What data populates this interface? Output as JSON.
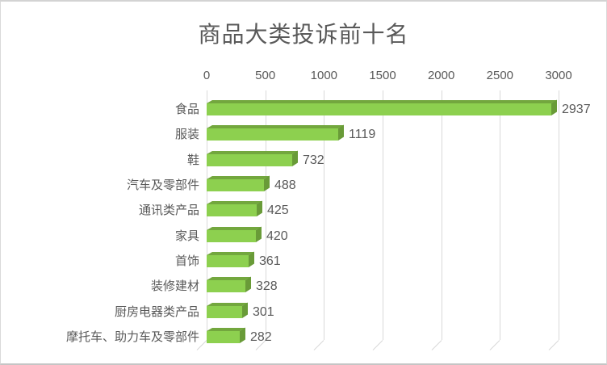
{
  "chart_data": {
    "type": "bar",
    "orientation": "horizontal",
    "style": "3d",
    "title": "商品大类投诉前十名",
    "xlabel": "",
    "ylabel": "",
    "xlim": [
      0,
      3000
    ],
    "x_ticks": [
      "0",
      "500",
      "1000",
      "1500",
      "2000",
      "2500",
      "3000"
    ],
    "grid": true,
    "axis_position": "top",
    "categories": [
      "食品",
      "服装",
      "鞋",
      "汽车及零部件",
      "通讯类产品",
      "家具",
      "首饰",
      "装修建材",
      "厨房电器类产品",
      "摩托车、助力车及零部件"
    ],
    "values": [
      2937,
      1119,
      732,
      488,
      425,
      420,
      361,
      328,
      301,
      282
    ],
    "data_labels": [
      "2937",
      "1119",
      "732",
      "488",
      "425",
      "420",
      "361",
      "328",
      "301",
      "282"
    ]
  },
  "colors": {
    "bar_front": "#8dd04f",
    "bar_top": "#73a73e",
    "bar_side": "#699b38",
    "gridline": "#d9d9d9",
    "text": "#595959",
    "background": "#ffffff"
  }
}
